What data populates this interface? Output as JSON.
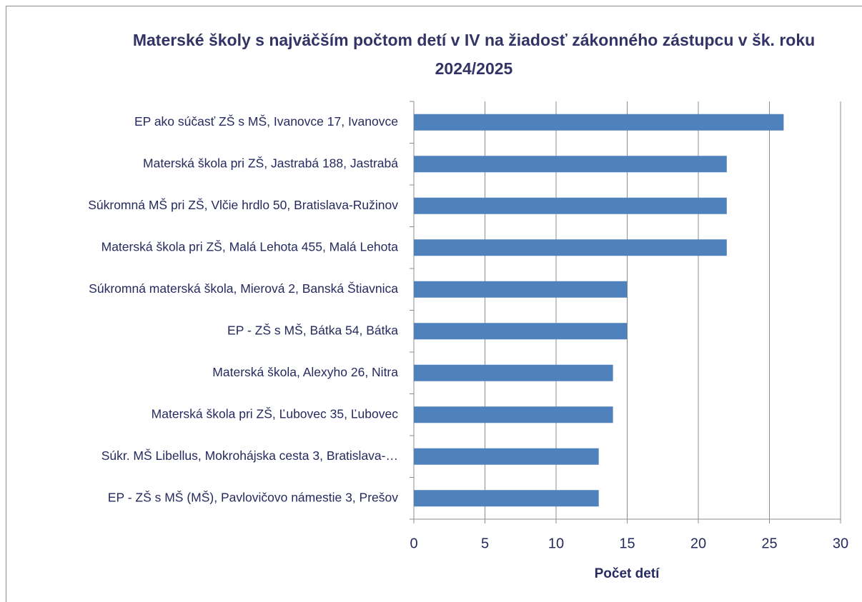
{
  "chart_data": {
    "type": "bar",
    "orientation": "horizontal",
    "title": "Materské školy s najväčším počtom detí v IV na žiadosť zákonného zástupcu v šk. roku 2024/2025",
    "x_label": "Počet detí",
    "categories": [
      "EP ako súčasť ZŠ s MŠ, Ivanovce 17, Ivanovce",
      "Materská škola pri ZŠ, Jastrabá 188, Jastrabá",
      "Súkromná MŠ pri ZŠ, Vlčie hrdlo 50, Bratislava-Ružinov",
      "Materská škola pri ZŠ, Malá Lehota 455, Malá Lehota",
      "Súkromná materská škola, Mierová 2, Banská Štiavnica",
      "EP - ZŠ s MŠ, Bátka 54, Bátka",
      "Materská škola, Alexyho 26, Nitra",
      "Materská škola pri ZŠ, Ľubovec 35, Ľubovec",
      "Súkr. MŠ Libellus, Mokrohájska cesta 3, Bratislava-…",
      "EP - ZŠ s MŠ (MŠ), Pavlovičovo námestie 3, Prešov"
    ],
    "values": [
      26,
      22,
      22,
      22,
      15,
      15,
      14,
      14,
      13,
      13
    ],
    "color": "#4f81bd",
    "xlim": [
      0,
      30
    ],
    "xticks": [
      0,
      5,
      10,
      15,
      20,
      25,
      30
    ],
    "grid": true
  }
}
